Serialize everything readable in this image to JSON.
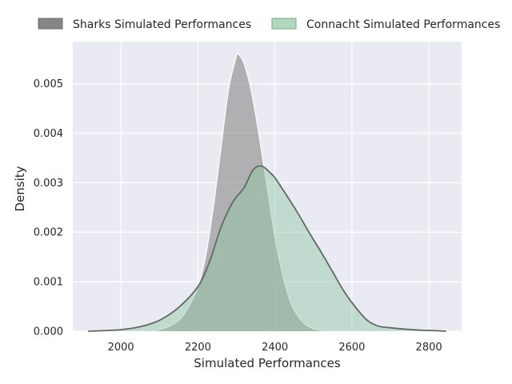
{
  "chart_data": {
    "type": "area",
    "title": "",
    "xlabel": "Simulated Performances",
    "ylabel": "Density",
    "xlim": [
      1875,
      2885
    ],
    "ylim": [
      0,
      0.00585
    ],
    "x_ticks": [
      2000,
      2200,
      2400,
      2600,
      2800
    ],
    "x_tick_labels": [
      "2000",
      "2200",
      "2400",
      "2600",
      "2800"
    ],
    "y_ticks": [
      0.0,
      0.001,
      0.002,
      0.003,
      0.004,
      0.005
    ],
    "y_tick_labels": [
      "0.000",
      "0.001",
      "0.002",
      "0.003",
      "0.004",
      "0.005"
    ],
    "grid": true,
    "legend_position": "top",
    "series": [
      {
        "name": "Sharks Simulated Performances",
        "color": "#808080",
        "fill_opacity": 0.55,
        "x": [
          2085,
          2100,
          2120,
          2140,
          2160,
          2180,
          2200,
          2220,
          2240,
          2260,
          2280,
          2300,
          2305,
          2320,
          2340,
          2360,
          2380,
          2400,
          2420,
          2440,
          2460,
          2480,
          2500,
          2520,
          2540,
          2560,
          2580,
          2600
        ],
        "values": [
          0.0,
          3e-05,
          8e-05,
          0.00016,
          0.0003,
          0.00055,
          0.0009,
          0.0015,
          0.0025,
          0.0037,
          0.0049,
          0.00555,
          0.0056,
          0.0054,
          0.0048,
          0.0039,
          0.0029,
          0.0019,
          0.00115,
          0.0006,
          0.0003,
          0.00013,
          5e-05,
          2e-05,
          1e-05,
          0.0,
          0.0,
          0.0
        ]
      },
      {
        "name": "Connacht Simulated Performances",
        "color": "#8fc7a3",
        "fill_opacity": 0.45,
        "x": [
          1915,
          1950,
          2000,
          2050,
          2100,
          2150,
          2200,
          2230,
          2260,
          2290,
          2320,
          2340,
          2355,
          2370,
          2385,
          2400,
          2430,
          2460,
          2490,
          2520,
          2550,
          2580,
          2610,
          2640,
          2670,
          2700,
          2740,
          2780,
          2820,
          2845
        ],
        "values": [
          0.0,
          1e-05,
          3e-05,
          9e-05,
          0.00022,
          0.00048,
          0.0009,
          0.0014,
          0.0021,
          0.0026,
          0.0029,
          0.00322,
          0.00333,
          0.00332,
          0.00322,
          0.0031,
          0.00275,
          0.00238,
          0.00198,
          0.0016,
          0.0012,
          0.0008,
          0.00048,
          0.00022,
          0.0001,
          7e-05,
          4e-05,
          2e-05,
          1e-05,
          0.0
        ]
      }
    ]
  }
}
